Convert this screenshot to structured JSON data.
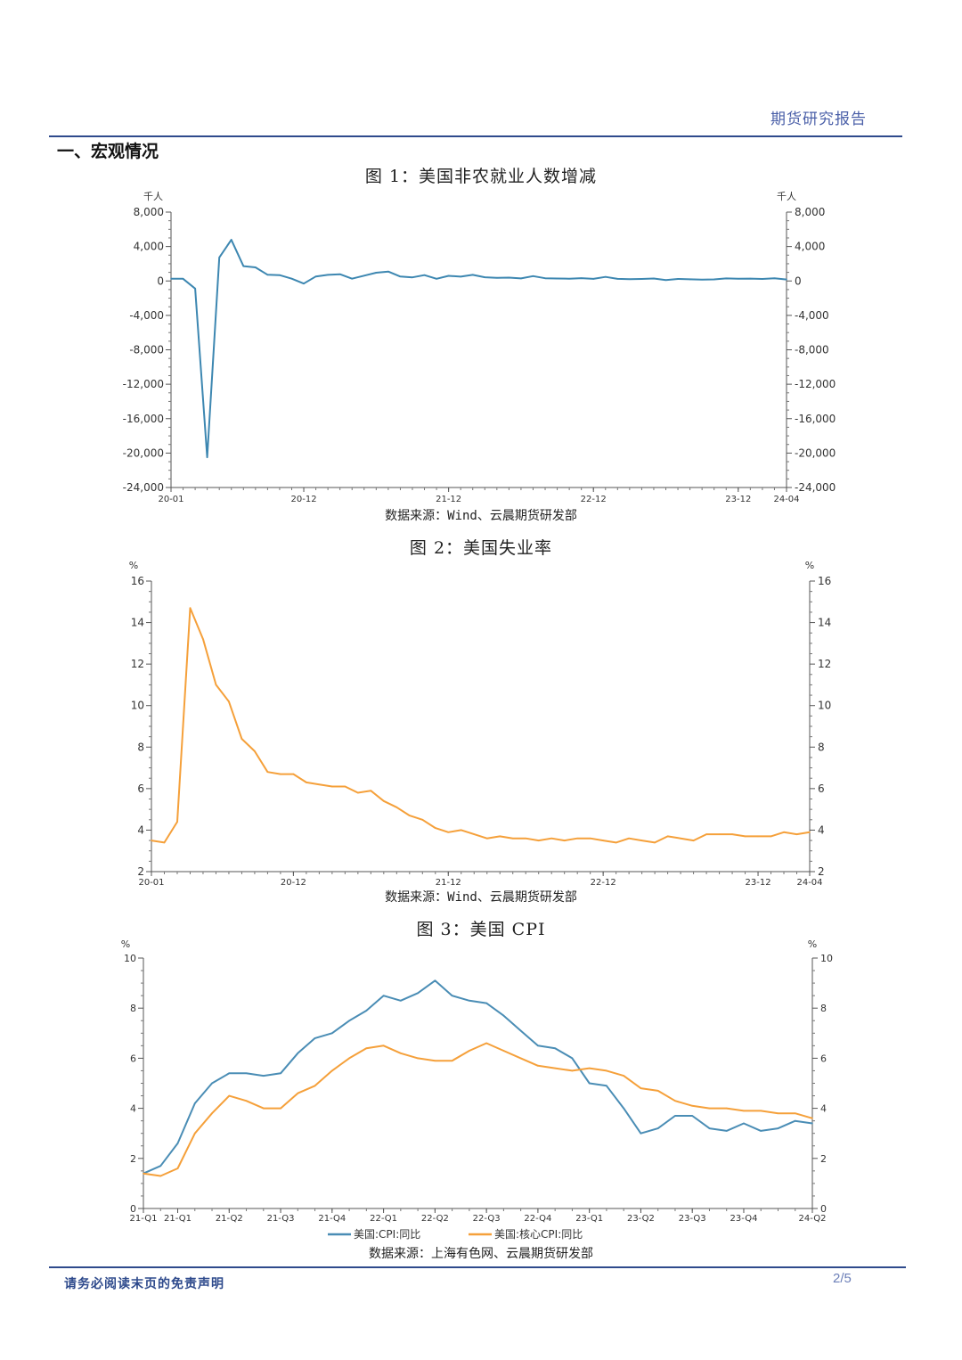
{
  "header": {
    "title": "期货研究报告"
  },
  "section": {
    "title": "一、宏观情况"
  },
  "figures": [
    {
      "title": "图 1：美国非农就业人数增减",
      "source": "数据来源：Wind、云晨期货研发部"
    },
    {
      "title": "图 2：美国失业率",
      "source": "数据来源：Wind、云晨期货研发部"
    },
    {
      "title": "图 3：美国 CPI",
      "source": "数据来源：上海有色网、云晨期货研发部"
    }
  ],
  "footer": {
    "disclaimer": "请务必阅读末页的免责声明",
    "page": "2/5"
  },
  "chart_data": [
    {
      "type": "line",
      "unit_left": "千人",
      "unit_right": "千人",
      "ylim": [
        -24000,
        8000
      ],
      "yticks": [
        8000,
        4000,
        0,
        -4000,
        -8000,
        -12000,
        -16000,
        -20000,
        -24000
      ],
      "ytick_labels": [
        "8,000",
        "4,000",
        "0",
        "-4,000",
        "-8,000",
        "-12,000",
        "-16,000",
        "-20,000",
        "-24,000"
      ],
      "x_tick_labels": [
        "20-01",
        "20-12",
        "21-12",
        "22-12",
        "23-12",
        "24-04"
      ],
      "x_tick_index": [
        0,
        11,
        23,
        35,
        47,
        51
      ],
      "grid": false,
      "series": [
        {
          "color": "#3d87b1",
          "values": [
            256,
            251,
            -881,
            -20493,
            2725,
            4781,
            1726,
            1583,
            716,
            680,
            264,
            -306,
            520,
            710,
            785,
            269,
            614,
            962,
            1091,
            517,
            424,
            677,
            249,
            600,
            504,
            714,
            431,
            368,
            386,
            293,
            568,
            315,
            284,
            263,
            324,
            239,
            472,
            248,
            217,
            236,
            281,
            105,
            236,
            187,
            165,
            182,
            290,
            256,
            270,
            236,
            310,
            175
          ]
        }
      ]
    },
    {
      "type": "line",
      "unit_left": "%",
      "unit_right": "%",
      "ylim": [
        2,
        16
      ],
      "yticks": [
        16,
        14,
        12,
        10,
        8,
        6,
        4,
        2
      ],
      "x_tick_labels": [
        "20-01",
        "20-12",
        "21-12",
        "22-12",
        "23-12",
        "24-04"
      ],
      "x_tick_index": [
        0,
        11,
        23,
        35,
        47,
        51
      ],
      "grid": false,
      "series": [
        {
          "color": "#f5a03a",
          "values": [
            3.5,
            3.4,
            4.4,
            14.7,
            13.2,
            11.0,
            10.2,
            8.4,
            7.8,
            6.8,
            6.7,
            6.7,
            6.3,
            6.2,
            6.1,
            6.1,
            5.8,
            5.9,
            5.4,
            5.1,
            4.7,
            4.5,
            4.1,
            3.9,
            4.0,
            3.8,
            3.6,
            3.7,
            3.6,
            3.6,
            3.5,
            3.6,
            3.5,
            3.6,
            3.6,
            3.5,
            3.4,
            3.6,
            3.5,
            3.4,
            3.7,
            3.6,
            3.5,
            3.8,
            3.8,
            3.8,
            3.7,
            3.7,
            3.7,
            3.9,
            3.8,
            3.9
          ]
        }
      ]
    },
    {
      "type": "line",
      "unit_left": "%",
      "unit_right": "%",
      "ylim": [
        0,
        10
      ],
      "yticks": [
        10,
        8,
        6,
        4,
        2,
        0
      ],
      "x_tick_labels": [
        "21-Q1",
        "21-Q1",
        "21-Q2",
        "21-Q3",
        "21-Q4",
        "22-Q1",
        "22-Q2",
        "22-Q3",
        "22-Q4",
        "23-Q1",
        "23-Q2",
        "23-Q3",
        "23-Q4",
        "24-Q2"
      ],
      "x_tick_index": [
        0,
        2,
        5,
        8,
        11,
        14,
        17,
        20,
        23,
        26,
        29,
        32,
        35,
        39
      ],
      "grid": false,
      "legend": "bottom",
      "series": [
        {
          "name": "美国:CPI:同比",
          "color": "#4a8db5",
          "values": [
            1.4,
            1.7,
            2.6,
            4.2,
            5.0,
            5.4,
            5.4,
            5.3,
            5.4,
            6.2,
            6.8,
            7.0,
            7.5,
            7.9,
            8.5,
            8.3,
            8.6,
            9.1,
            8.5,
            8.3,
            8.2,
            7.7,
            7.1,
            6.5,
            6.4,
            6.0,
            5.0,
            4.9,
            4.0,
            3.0,
            3.2,
            3.7,
            3.7,
            3.2,
            3.1,
            3.4,
            3.1,
            3.2,
            3.5,
            3.4
          ]
        },
        {
          "name": "美国:核心CPI:同比",
          "color": "#f5a03a",
          "values": [
            1.4,
            1.3,
            1.6,
            3.0,
            3.8,
            4.5,
            4.3,
            4.0,
            4.0,
            4.6,
            4.9,
            5.5,
            6.0,
            6.4,
            6.5,
            6.2,
            6.0,
            5.9,
            5.9,
            6.3,
            6.6,
            6.3,
            6.0,
            5.7,
            5.6,
            5.5,
            5.6,
            5.5,
            5.3,
            4.8,
            4.7,
            4.3,
            4.1,
            4.0,
            4.0,
            3.9,
            3.9,
            3.8,
            3.8,
            3.6
          ]
        }
      ]
    }
  ]
}
